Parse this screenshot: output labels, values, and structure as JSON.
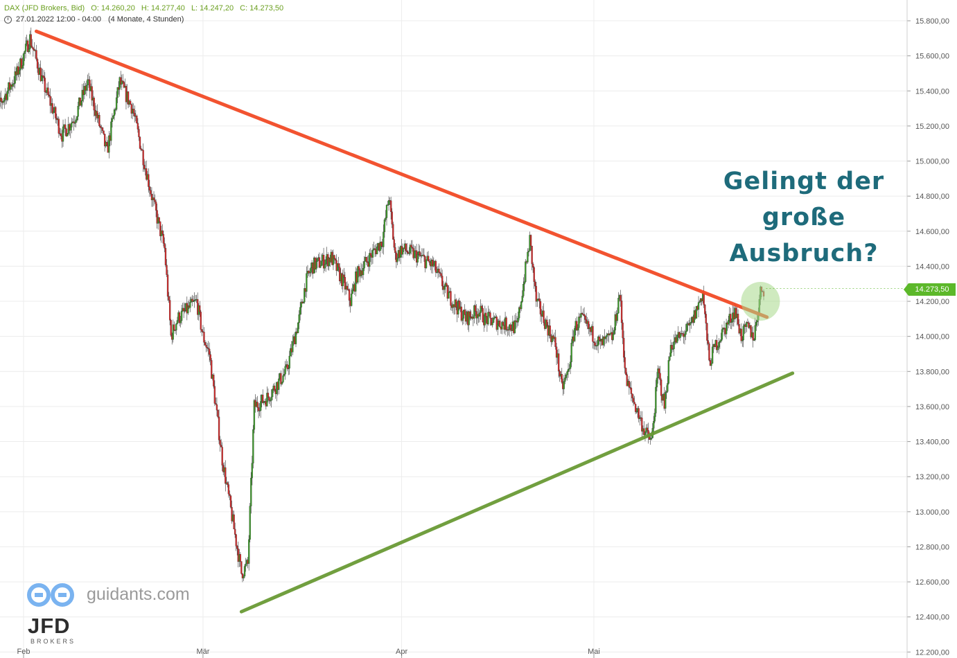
{
  "header": {
    "instrument": "DAX (JFD Brokers, Bid)",
    "open": "O: 14.260,20",
    "high": "H: 14.277,40",
    "low": "L: 14.247,20",
    "close": "C: 14.273,50",
    "range_start": "27.01.2022 12:00 - 04:00",
    "range_desc": "(4 Monate, 4 Stunden)"
  },
  "annotation": {
    "line1": "Gelingt der",
    "line2": "große",
    "line3": "Ausbruch?"
  },
  "current_price": "14.273,50",
  "watermark": {
    "site": "guidants.com",
    "broker": "JFD",
    "broker_sub": "BROKERS"
  },
  "colors": {
    "up_candle": "#3d9c2a",
    "down_candle": "#d42a2a",
    "resistance": "#f24a25",
    "support": "#6a9a35",
    "highlight": "#a8d88a",
    "annotation": "#1e6b7b",
    "price_tag": "#5cb82a"
  },
  "chart_data": {
    "type": "candlestick",
    "y_axis": {
      "ylim": [
        12200,
        15900
      ],
      "ticks": [
        12200,
        12400,
        12600,
        12800,
        13000,
        13200,
        13400,
        13600,
        13800,
        14000,
        14200,
        14400,
        14600,
        14800,
        15000,
        15200,
        15400,
        15600,
        15800
      ],
      "tick_labels": [
        "12.200,00",
        "12.400,00",
        "12.600,00",
        "12.800,00",
        "13.000,00",
        "13.200,00",
        "13.400,00",
        "13.600,00",
        "13.800,00",
        "14.000,00",
        "14.200,00",
        "14.400,00",
        "14.600,00",
        "14.800,00",
        "15.000,00",
        "15.200,00",
        "15.400,00",
        "15.600,00",
        "15.800,00"
      ],
      "position": "right",
      "grid": true
    },
    "x_axis": {
      "range": [
        "2022-01-27",
        "2022-06-01"
      ],
      "ticks": [
        {
          "date": "2022-02-01",
          "label": "Feb"
        },
        {
          "date": "2022-03-01",
          "label": "Mär"
        },
        {
          "date": "2022-04-01",
          "label": "Apr"
        },
        {
          "date": "2022-05-01",
          "label": "Mai"
        }
      ],
      "grid": true
    },
    "price_path": [
      [
        "2022-01-27",
        15420
      ],
      [
        "2022-01-28",
        15300
      ],
      [
        "2022-01-31",
        15500
      ],
      [
        "2022-02-02",
        15700
      ],
      [
        "2022-02-04",
        15450
      ],
      [
        "2022-02-07",
        15150
      ],
      [
        "2022-02-09",
        15250
      ],
      [
        "2022-02-11",
        15450
      ],
      [
        "2022-02-14",
        15050
      ],
      [
        "2022-02-16",
        15450
      ],
      [
        "2022-02-18",
        15300
      ],
      [
        "2022-02-21",
        14800
      ],
      [
        "2022-02-23",
        14500
      ],
      [
        "2022-02-24",
        14000
      ],
      [
        "2022-02-25",
        14100
      ],
      [
        "2022-02-28",
        14200
      ],
      [
        "2022-03-01",
        14000
      ],
      [
        "2022-03-02",
        13900
      ],
      [
        "2022-03-04",
        13300
      ],
      [
        "2022-03-07",
        12650
      ],
      [
        "2022-03-08",
        12700
      ],
      [
        "2022-03-09",
        13600
      ],
      [
        "2022-03-11",
        13650
      ],
      [
        "2022-03-14",
        13800
      ],
      [
        "2022-03-16",
        14100
      ],
      [
        "2022-03-17",
        14300
      ],
      [
        "2022-03-18",
        14400
      ],
      [
        "2022-03-21",
        14450
      ],
      [
        "2022-03-23",
        14300
      ],
      [
        "2022-03-24",
        14200
      ],
      [
        "2022-03-25",
        14350
      ],
      [
        "2022-03-29",
        14550
      ],
      [
        "2022-03-30",
        14800
      ],
      [
        "2022-03-31",
        14450
      ],
      [
        "2022-04-01",
        14500
      ],
      [
        "2022-04-04",
        14450
      ],
      [
        "2022-04-06",
        14400
      ],
      [
        "2022-04-08",
        14250
      ],
      [
        "2022-04-11",
        14100
      ],
      [
        "2022-04-13",
        14150
      ],
      [
        "2022-04-14",
        14100
      ],
      [
        "2022-04-19",
        14050
      ],
      [
        "2022-04-20",
        14300
      ],
      [
        "2022-04-21",
        14550
      ],
      [
        "2022-04-22",
        14200
      ],
      [
        "2022-04-25",
        13950
      ],
      [
        "2022-04-26",
        13700
      ],
      [
        "2022-04-27",
        13800
      ],
      [
        "2022-04-28",
        14050
      ],
      [
        "2022-04-29",
        14100
      ],
      [
        "2022-05-02",
        13950
      ],
      [
        "2022-05-04",
        14000
      ],
      [
        "2022-05-05",
        14250
      ],
      [
        "2022-05-06",
        13750
      ],
      [
        "2022-05-09",
        13450
      ],
      [
        "2022-05-10",
        13400
      ],
      [
        "2022-05-11",
        13800
      ],
      [
        "2022-05-12",
        13600
      ],
      [
        "2022-05-13",
        13950
      ],
      [
        "2022-05-16",
        14050
      ],
      [
        "2022-05-18",
        14250
      ],
      [
        "2022-05-19",
        13850
      ],
      [
        "2022-05-20",
        13950
      ],
      [
        "2022-05-23",
        14150
      ],
      [
        "2022-05-24",
        14000
      ],
      [
        "2022-05-25",
        14050
      ],
      [
        "2022-05-26",
        14000
      ],
      [
        "2022-05-27",
        14250
      ],
      [
        "2022-05-27",
        14273.5
      ]
    ],
    "trendlines": [
      {
        "type": "resistance",
        "from": [
          "2022-02-03",
          15740
        ],
        "to": [
          "2022-05-28",
          14110
        ]
      },
      {
        "type": "support",
        "from": [
          "2022-03-07",
          12430
        ],
        "to": [
          "2022-06-01",
          13790
        ]
      }
    ],
    "highlight": {
      "date": "2022-05-27",
      "value": 14200
    },
    "last_price": 14273.5
  }
}
